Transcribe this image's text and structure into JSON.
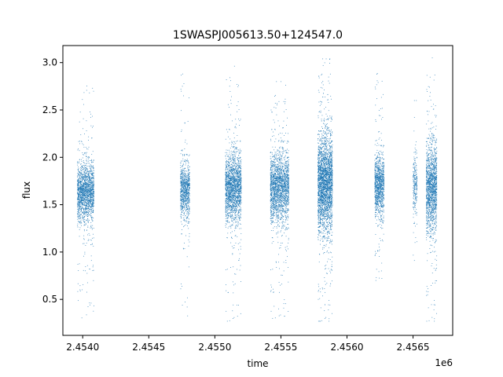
{
  "chart_data": {
    "type": "scatter",
    "title": "1SWASPJ005613.50+124547.0",
    "xlabel": "time",
    "ylabel": "flux",
    "x_offset_label": "1e6",
    "xlim": [
      2453850,
      2456800
    ],
    "ylim": [
      0.12,
      3.18
    ],
    "x_ticks": [
      2454000,
      2454500,
      2455000,
      2455500,
      2456000,
      2456500
    ],
    "x_tick_labels": [
      "2.4540",
      "2.4545",
      "2.4550",
      "2.4555",
      "2.4560",
      "2.4565"
    ],
    "y_ticks": [
      0.5,
      1.0,
      1.5,
      2.0,
      2.5,
      3.0
    ],
    "y_tick_labels": [
      "0.5",
      "1.0",
      "1.5",
      "2.0",
      "2.5",
      "3.0"
    ],
    "grid": false,
    "legend": "none",
    "marker_color": "#1f77b4",
    "series": [
      {
        "seasons": [
          {
            "x_start": 2453960,
            "x_end": 2454085,
            "median": 1.63,
            "spread": 0.28,
            "points": 1800,
            "low": 0.3,
            "high": 2.9
          },
          {
            "x_start": 2454740,
            "x_end": 2454810,
            "median": 1.65,
            "spread": 0.25,
            "points": 900,
            "low": 0.3,
            "high": 3.05
          },
          {
            "x_start": 2455080,
            "x_end": 2455200,
            "median": 1.68,
            "spread": 0.32,
            "points": 2000,
            "low": 0.27,
            "high": 3.0
          },
          {
            "x_start": 2455420,
            "x_end": 2455560,
            "median": 1.68,
            "spread": 0.32,
            "points": 2100,
            "low": 0.3,
            "high": 2.8
          },
          {
            "x_start": 2455780,
            "x_end": 2455890,
            "median": 1.72,
            "spread": 0.45,
            "points": 3200,
            "low": 0.27,
            "high": 3.04
          },
          {
            "x_start": 2456210,
            "x_end": 2456280,
            "median": 1.7,
            "spread": 0.28,
            "points": 1100,
            "low": 0.7,
            "high": 3.02
          },
          {
            "x_start": 2456500,
            "x_end": 2456530,
            "median": 1.7,
            "spread": 0.3,
            "points": 250,
            "low": 0.7,
            "high": 2.6
          },
          {
            "x_start": 2456600,
            "x_end": 2456680,
            "median": 1.68,
            "spread": 0.42,
            "points": 1600,
            "low": 0.27,
            "high": 3.05
          }
        ]
      }
    ]
  }
}
